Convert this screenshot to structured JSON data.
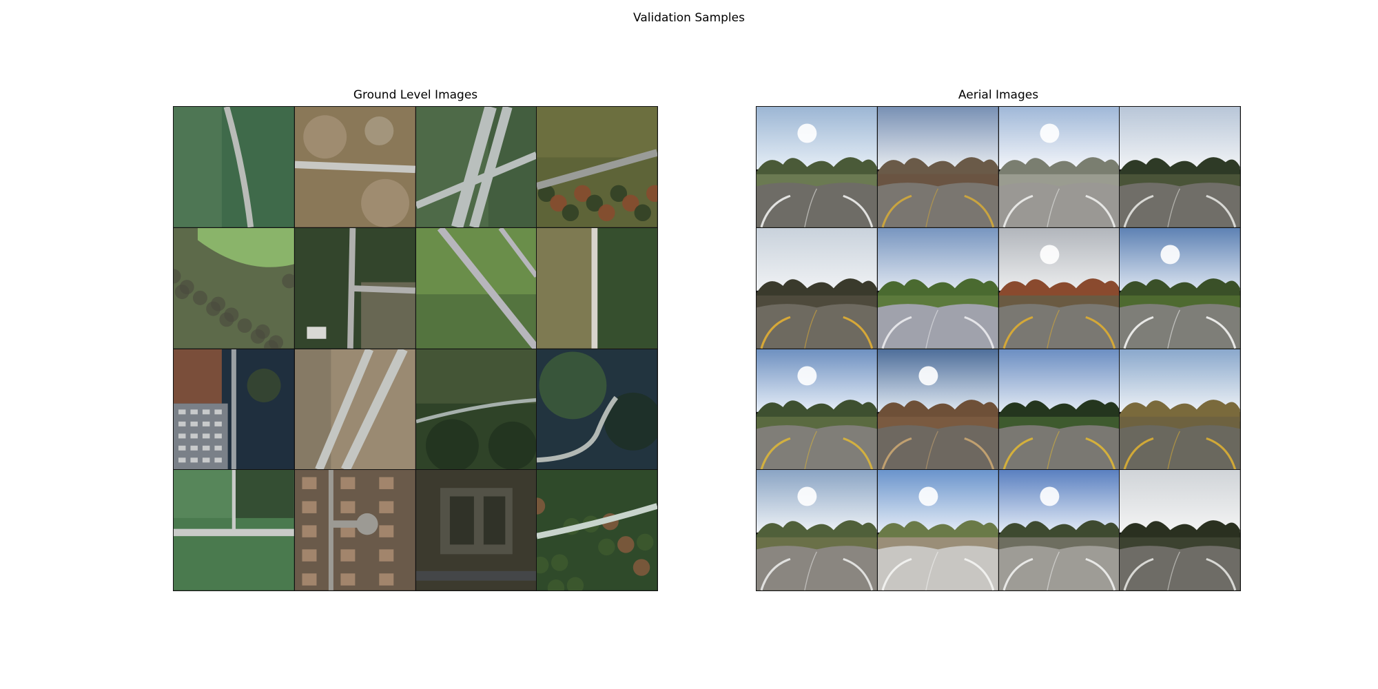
{
  "figure": {
    "title": "Validation Samples"
  },
  "panels": [
    {
      "title": "Ground Level Images",
      "tile_kind": "aerial",
      "tiles": [
        {
          "bg": "#3f6a4a",
          "bg2": "#587e5c",
          "road": "#b9bcb8",
          "variant": "curve-v"
        },
        {
          "bg": "#8a7858",
          "bg2": "#a8947a",
          "road": "#c8c8c4",
          "variant": "h-mid"
        },
        {
          "bg": "#4e6a48",
          "bg2": "#3f5a3c",
          "road": "#b9bfbd",
          "variant": "interchange"
        },
        {
          "bg": "#5e6438",
          "bg2": "#2f3e25",
          "road": "#9a9c98",
          "variant": "diag-up"
        },
        {
          "bg": "#5d6a4a",
          "bg2": "#8ab46a",
          "road": "#6b705e",
          "variant": "field-corner"
        },
        {
          "bg": "#33452c",
          "bg2": "#6e6a58",
          "road": "#b0b0ae",
          "variant": "t-junction"
        },
        {
          "bg": "#6a8e4a",
          "bg2": "#4f6e3c",
          "road": "#b7b6bc",
          "variant": "diag-down"
        },
        {
          "bg": "#7e7a52",
          "bg2": "#2f4a2a",
          "road": "#d8d4cc",
          "variant": "v-right"
        },
        {
          "bg": "#1f2f3e",
          "bg2": "#7a8088",
          "road": "#9aa0a4",
          "variant": "parking"
        },
        {
          "bg": "#9a8a72",
          "bg2": "#7e7460",
          "road": "#c4c6c2",
          "variant": "highway-diag"
        },
        {
          "bg": "#2f4328",
          "bg2": "#4a5a3a",
          "road": "#a6b0ac",
          "variant": "forest-road"
        },
        {
          "bg": "#22343f",
          "bg2": "#3e5e3a",
          "road": "#b2b8b4",
          "variant": "curve-lower"
        },
        {
          "bg": "#4a7a4e",
          "bg2": "#31482f",
          "road": "#c9cbc8",
          "variant": "h-low"
        },
        {
          "bg": "#6a5a4a",
          "bg2": "#8e7a66",
          "road": "#9c9a94",
          "variant": "cul-de-sac"
        },
        {
          "bg": "#3c3a2e",
          "bg2": "#55554a",
          "road": "#444648",
          "variant": "buildings"
        },
        {
          "bg": "#2f4a2a",
          "bg2": "#8a5a3e",
          "road": "#c8d4cc",
          "variant": "curve-upper"
        }
      ]
    },
    {
      "title": "Aerial Images",
      "tile_kind": "panorama",
      "tiles": [
        {
          "sky": "#9cb6d4",
          "sky2": "#e6eef6",
          "ground": "#6b7a52",
          "road": "#6e6c66",
          "line": "#e2e2e0",
          "trees": "#4a5a38",
          "sun": true
        },
        {
          "sky": "#7890b4",
          "sky2": "#e8ecf0",
          "ground": "#6a5442",
          "road": "#7a7670",
          "line": "#c9a440",
          "trees": "#6a5a48",
          "sun": false
        },
        {
          "sky": "#a0b8d8",
          "sky2": "#f4f6fa",
          "ground": "#9a9c90",
          "road": "#9a9894",
          "line": "#e6e6e4",
          "trees": "#7a7e70",
          "sun": true
        },
        {
          "sky": "#b8c6d8",
          "sky2": "#f2f4f6",
          "ground": "#4a5438",
          "road": "#706e68",
          "line": "#d8d8d4",
          "trees": "#2e3a26",
          "sun": false
        },
        {
          "sky": "#c9d2dc",
          "sky2": "#f0f2f4",
          "ground": "#4e4a3c",
          "road": "#6e6a60",
          "line": "#d6a838",
          "trees": "#3a3a2c",
          "sun": false
        },
        {
          "sky": "#7896c0",
          "sky2": "#dfe6f0",
          "ground": "#5c7a3c",
          "road": "#a0a2ac",
          "line": "#e4e4e8",
          "trees": "#4a6a30",
          "sun": false
        },
        {
          "sky": "#b2b6bc",
          "sky2": "#ecedee",
          "ground": "#6a5a42",
          "road": "#7a7872",
          "line": "#d4a838",
          "trees": "#8a4a2e",
          "sun": true
        },
        {
          "sky": "#5e82b4",
          "sky2": "#dbe4f0",
          "ground": "#4e6a30",
          "road": "#7e7e78",
          "line": "#e8e8e6",
          "trees": "#3a5028",
          "sun": true
        },
        {
          "sky": "#6e90c0",
          "sky2": "#e6eef8",
          "ground": "#5a6a40",
          "road": "#807e78",
          "line": "#d2b040",
          "trees": "#3e5030",
          "sun": true
        },
        {
          "sky": "#4e6e9a",
          "sky2": "#dfe8f2",
          "ground": "#7a5a40",
          "road": "#6e6860",
          "line": "#c0a070",
          "trees": "#6e5038",
          "sun": true
        },
        {
          "sky": "#6c8ec2",
          "sky2": "#e2eaf4",
          "ground": "#3e5a2e",
          "road": "#7a7872",
          "line": "#d4b03c",
          "trees": "#24361e",
          "sun": false
        },
        {
          "sky": "#8aa8cc",
          "sky2": "#eef2f6",
          "ground": "#6e6240",
          "road": "#6a685e",
          "line": "#d0a838",
          "trees": "#7a6a3c",
          "sun": false
        },
        {
          "sky": "#8aa4c4",
          "sky2": "#eef2f6",
          "ground": "#6a7048",
          "road": "#8a8680",
          "line": "#e0e0de",
          "trees": "#50603a",
          "sun": true
        },
        {
          "sky": "#6a94cc",
          "sky2": "#e4ecf6",
          "ground": "#9a8e78",
          "road": "#c8c6c2",
          "line": "#f0f0ee",
          "trees": "#6a7a48",
          "sun": true
        },
        {
          "sky": "#5a80c0",
          "sky2": "#e2eaf6",
          "ground": "#6e6e60",
          "road": "#9e9c96",
          "line": "#e8e8e6",
          "trees": "#3e4a30",
          "sun": true
        },
        {
          "sky": "#d0d4d8",
          "sky2": "#f4f4f4",
          "ground": "#3c4230",
          "road": "#6e6c66",
          "line": "#d8d8d4",
          "trees": "#2a3020",
          "sun": false
        }
      ]
    }
  ]
}
